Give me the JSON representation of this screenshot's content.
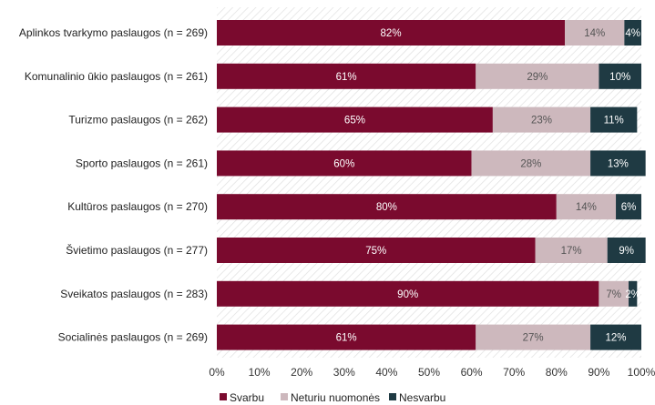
{
  "chart_data": {
    "type": "bar",
    "orientation": "horizontal",
    "stacked": true,
    "categories": [
      "Aplinkos tvarkymo paslaugos (n = 269)",
      "Komunalinio ūkio paslaugos (n = 261)",
      "Turizmo paslaugos (n = 262)",
      "Sporto paslaugos (n = 261)",
      "Kultūros paslaugos (n = 270)",
      "Švietimo paslaugos (n = 277)",
      "Sveikatos paslaugos (n = 283)",
      "Socialinės paslaugos (n = 269)"
    ],
    "series": [
      {
        "name": "Svarbu",
        "color": "#7a0a2e",
        "label_color": "#ffffff",
        "values": [
          82,
          61,
          65,
          60,
          80,
          75,
          90,
          61
        ],
        "labels": [
          "82%",
          "61%",
          "65%",
          "60%",
          "80%",
          "75%",
          "90%",
          "61%"
        ]
      },
      {
        "name": "Neturiu nuomonės",
        "color": "#cdb8bd",
        "label_color": "#555555",
        "values": [
          14,
          29,
          23,
          28,
          14,
          17,
          7,
          27
        ],
        "labels": [
          "14%",
          "29%",
          "23%",
          "28%",
          "14%",
          "17%",
          "7%",
          "27%"
        ]
      },
      {
        "name": "Nesvarbu",
        "color": "#1f3a43",
        "label_color": "#ffffff",
        "values": [
          4,
          10,
          11,
          13,
          6,
          9,
          2,
          12
        ],
        "labels": [
          "4%",
          "10%",
          "11%",
          "13%",
          "6%",
          "9%",
          "2%",
          "12%"
        ]
      }
    ],
    "xlim": [
      0,
      100
    ],
    "x_ticks": [
      "0%",
      "10%",
      "20%",
      "30%",
      "40%",
      "50%",
      "60%",
      "70%",
      "80%",
      "90%",
      "100%"
    ],
    "legend_position": "bottom",
    "grid": false,
    "background": "hatched"
  }
}
